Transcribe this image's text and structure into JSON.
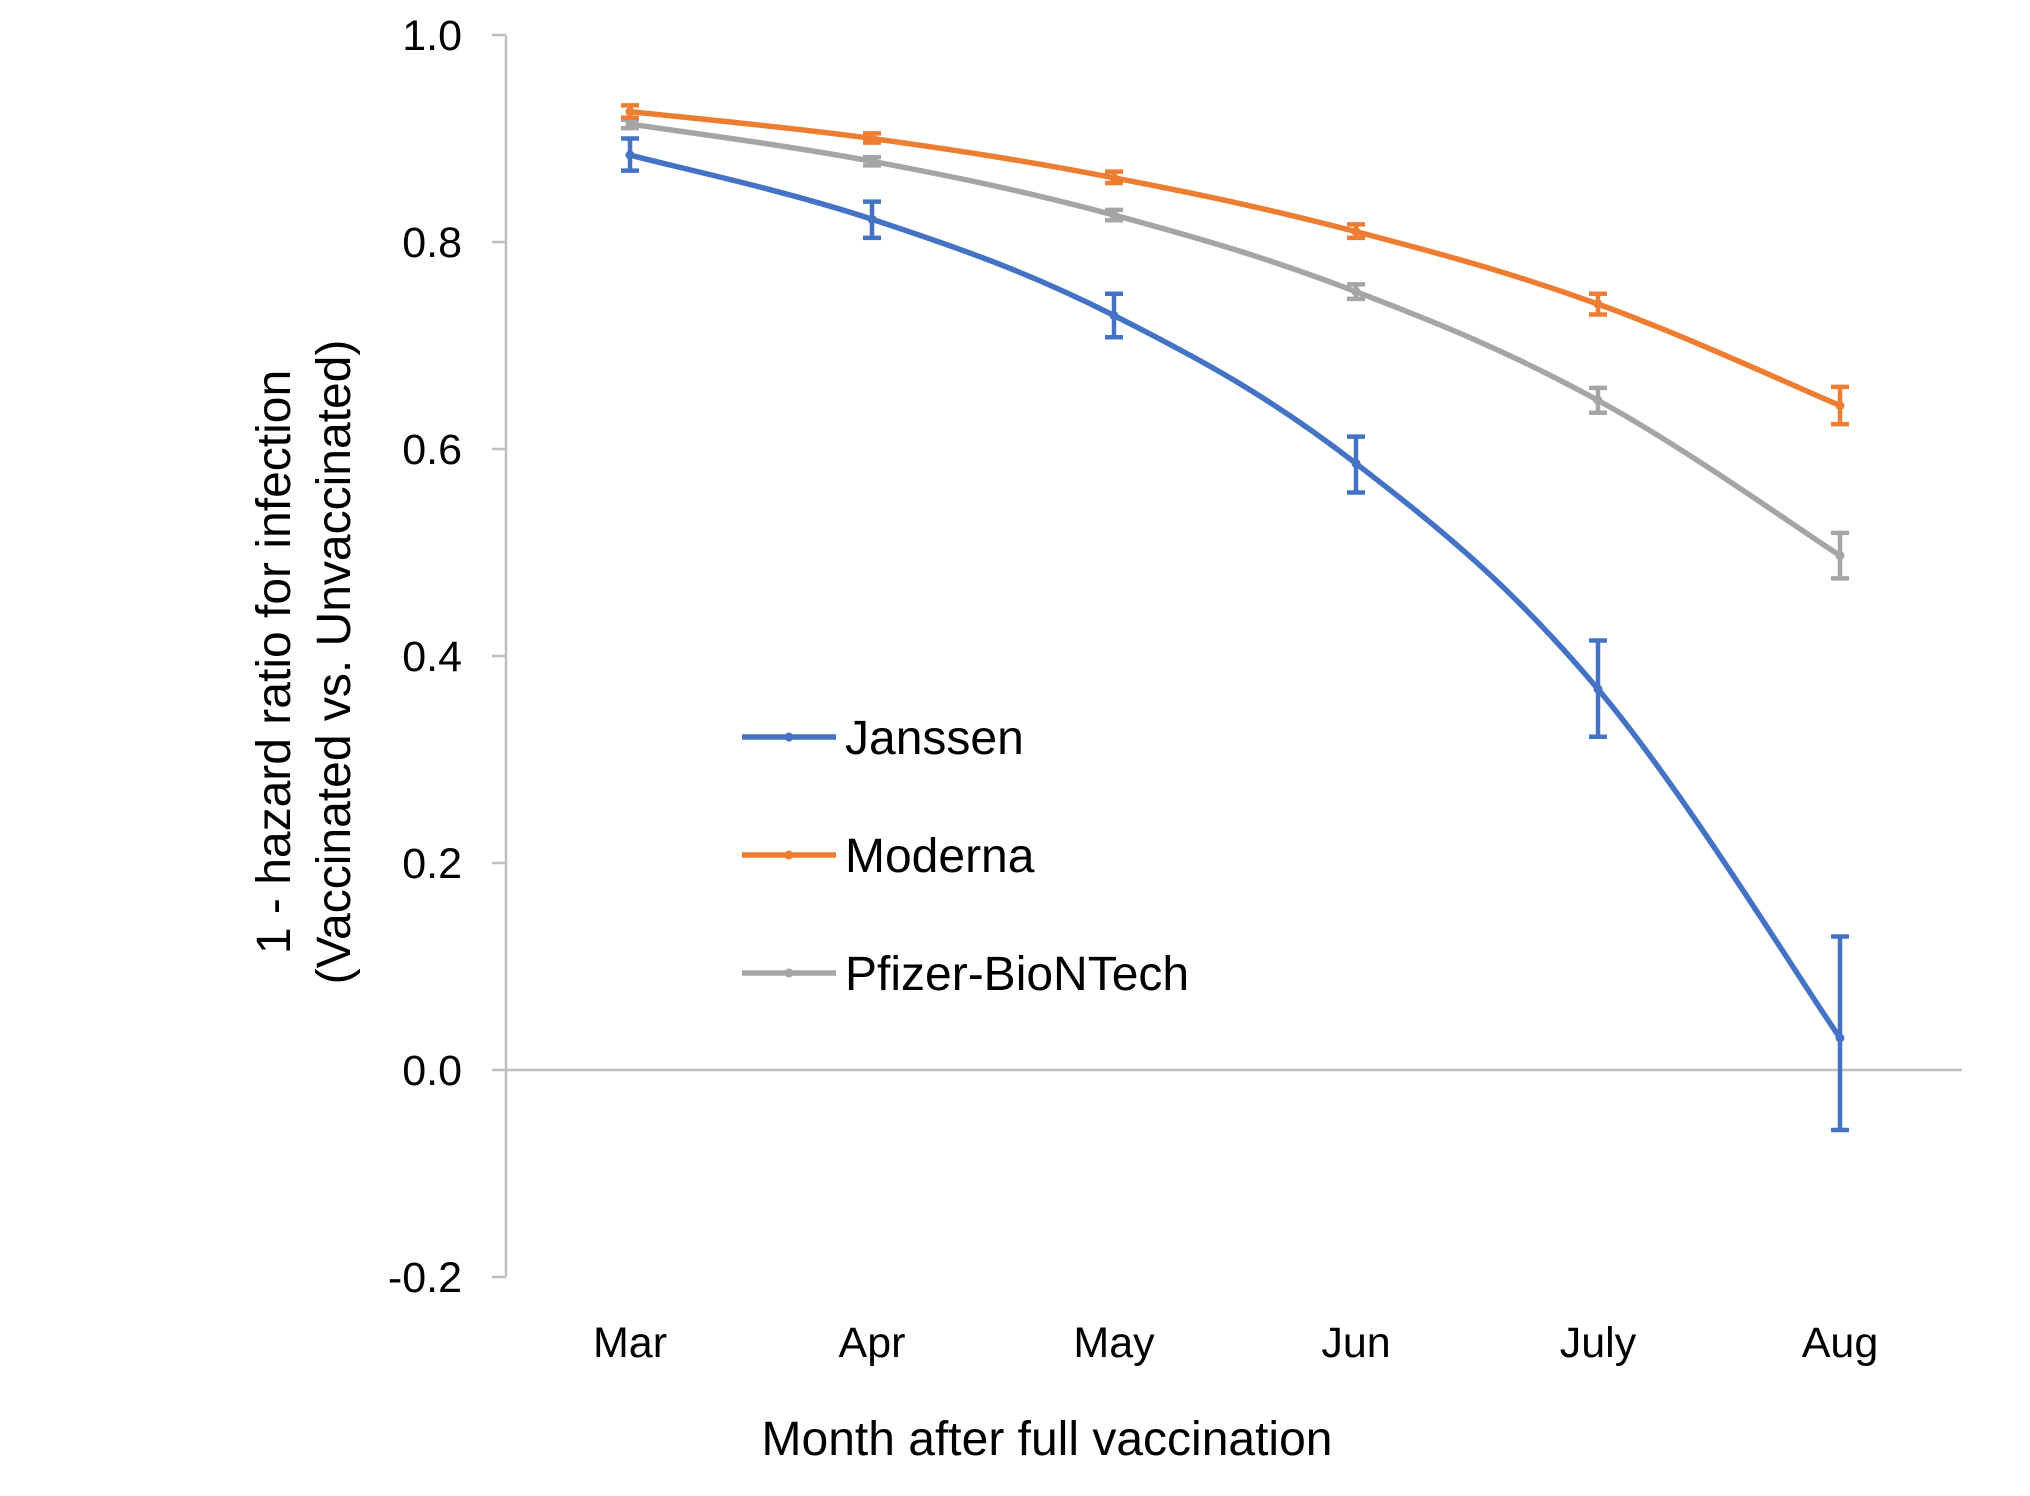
{
  "chart_data": {
    "type": "line",
    "title": "",
    "xlabel": "Month after full vaccination",
    "ylabel_lines": [
      "1 - hazard ratio for infection",
      "(Vaccinated vs. Unvaccinated)"
    ],
    "categories": [
      "Mar",
      "Apr",
      "May",
      "Jun",
      "July",
      "Aug"
    ],
    "ylim": [
      -0.2,
      1.0
    ],
    "yticks": [
      1.0,
      0.8,
      0.6,
      0.4,
      0.2,
      0.0,
      -0.2
    ],
    "ytick_labels": [
      "1.0",
      "0.8",
      "0.6",
      "0.4",
      "0.2",
      "0.0",
      "-0.2"
    ],
    "grid": false,
    "legend_position": "center-left",
    "series": [
      {
        "name": "Janssen",
        "color": "#4472C4",
        "values": [
          0.884,
          0.822,
          0.729,
          0.586,
          0.368,
          0.031
        ],
        "lower": [
          0.869,
          0.804,
          0.708,
          0.558,
          0.322,
          -0.058
        ],
        "upper": [
          0.9,
          0.839,
          0.75,
          0.612,
          0.415,
          0.129
        ]
      },
      {
        "name": "Moderna",
        "color": "#ED7D31",
        "values": [
          0.926,
          0.9,
          0.862,
          0.81,
          0.74,
          0.642
        ],
        "lower": [
          0.92,
          0.896,
          0.857,
          0.804,
          0.73,
          0.624
        ],
        "upper": [
          0.932,
          0.905,
          0.868,
          0.817,
          0.75,
          0.66
        ]
      },
      {
        "name": "Pfizer-BioNTech",
        "color": "#A5A5A5",
        "values": [
          0.914,
          0.878,
          0.826,
          0.752,
          0.647,
          0.497
        ],
        "lower": [
          0.91,
          0.874,
          0.821,
          0.745,
          0.635,
          0.475
        ],
        "upper": [
          0.918,
          0.882,
          0.831,
          0.759,
          0.659,
          0.519
        ]
      }
    ]
  }
}
